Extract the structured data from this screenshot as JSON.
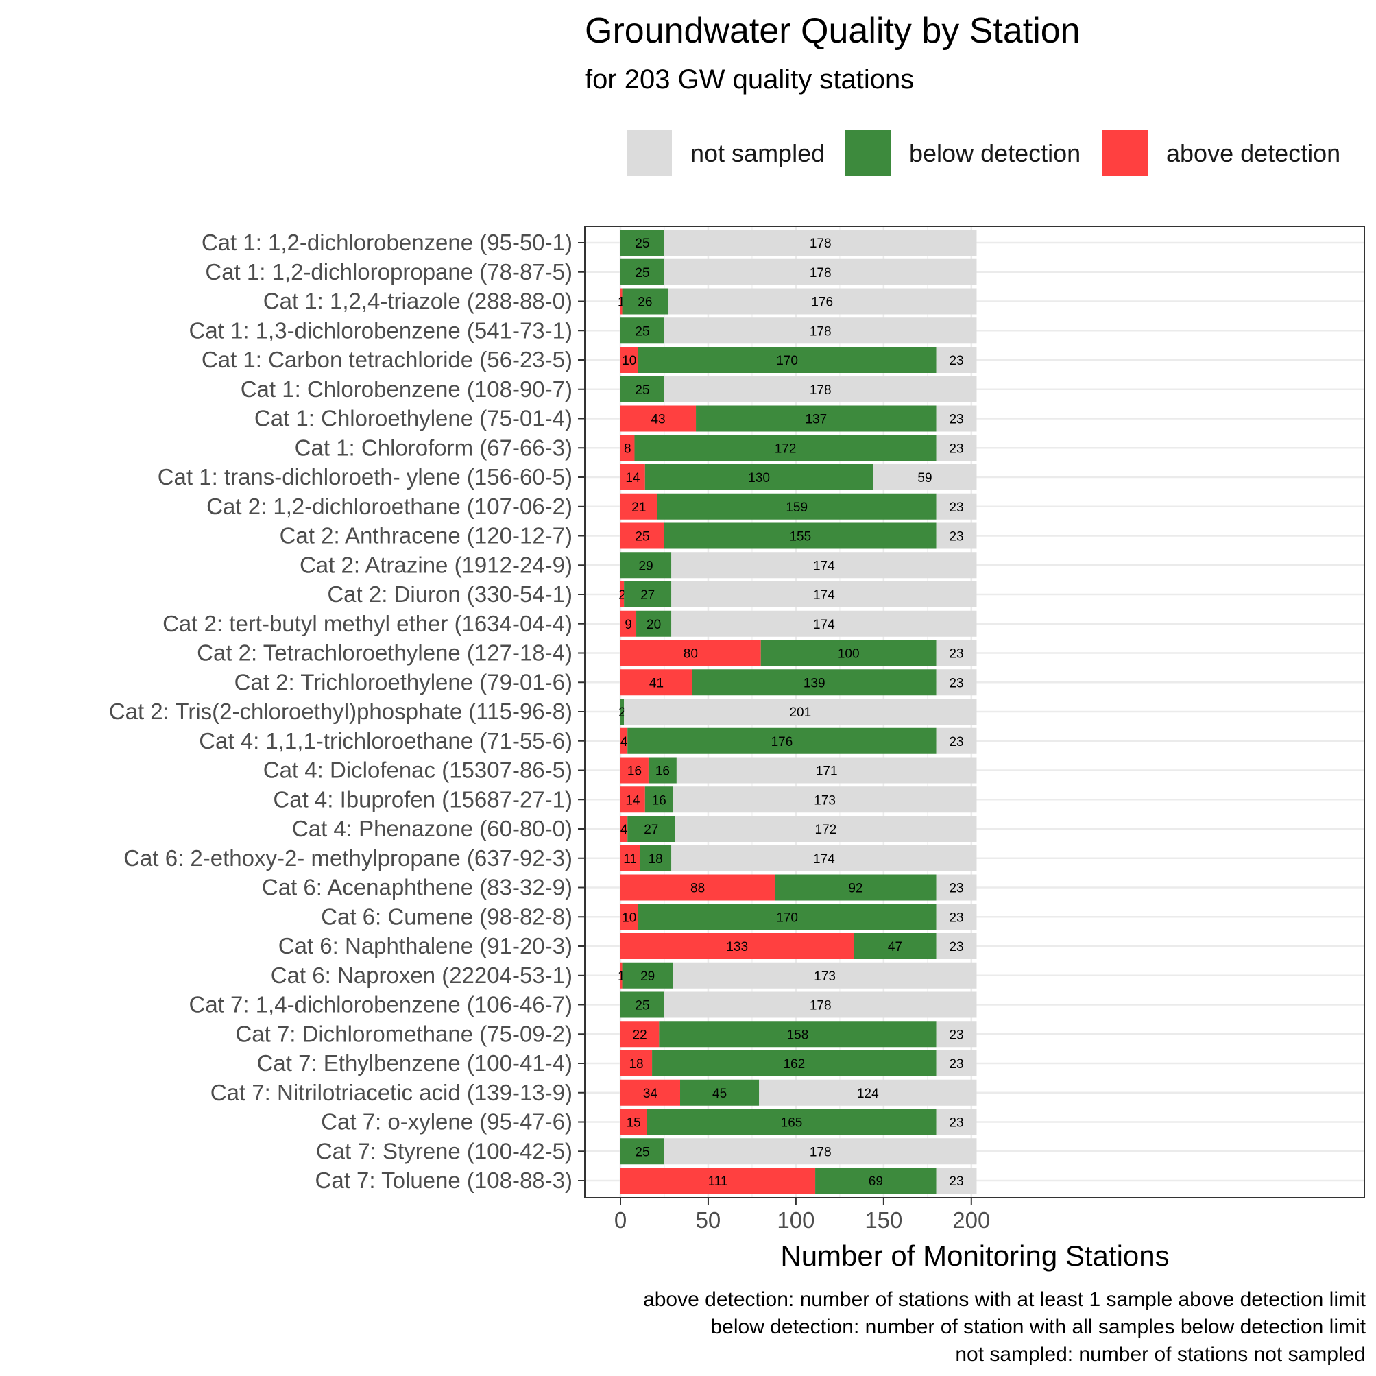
{
  "chart_data": {
    "type": "bar",
    "orientation": "horizontal",
    "stacked": true,
    "title": "Groundwater Quality by Station",
    "subtitle": "for 203 GW quality stations",
    "xlabel": "Number of Monitoring Stations",
    "ylabel": "",
    "xlim": [
      0,
      203
    ],
    "xticks": [
      0,
      50,
      100,
      150,
      200
    ],
    "grid": true,
    "legend_position": "top",
    "legend": [
      {
        "name": "not sampled",
        "color": "#dcdcdc"
      },
      {
        "name": "below detection",
        "color": "#3d8a3d"
      },
      {
        "name": "above detection",
        "color": "#ff4040"
      }
    ],
    "caption_lines": [
      "above detection: number of stations with at least 1 sample above detection limit",
      "below detection: number of station with all samples below detection limit",
      "not sampled: number of stations not sampled"
    ],
    "categories": [
      "Cat 1: 1,2-dichlorobenzene (95-50-1)",
      "Cat 1: 1,2-dichloropropane (78-87-5)",
      "Cat 1: 1,2,4-triazole (288-88-0)",
      "Cat 1: 1,3-dichlorobenzene (541-73-1)",
      "Cat 1: Carbon tetrachloride (56-23-5)",
      "Cat 1: Chlorobenzene (108-90-7)",
      "Cat 1: Chloroethylene (75-01-4)",
      "Cat 1: Chloroform (67-66-3)",
      "Cat 1: trans-dichloroeth- ylene (156-60-5)",
      "Cat 2: 1,2-dichloroethane (107-06-2)",
      "Cat 2: Anthracene (120-12-7)",
      "Cat 2: Atrazine (1912-24-9)",
      "Cat 2: Diuron (330-54-1)",
      "Cat 2: tert-butyl methyl ether (1634-04-4)",
      "Cat 2: Tetrachloroethylene (127-18-4)",
      "Cat 2: Trichloroethylene (79-01-6)",
      "Cat 2: Tris(2-chloroethyl)phosphate (115-96-8)",
      "Cat 4: 1,1,1-trichloroethane (71-55-6)",
      "Cat 4: Diclofenac (15307-86-5)",
      "Cat 4: Ibuprofen (15687-27-1)",
      "Cat 4: Phenazone (60-80-0)",
      "Cat 6: 2-ethoxy-2- methylpropane (637-92-3)",
      "Cat 6: Acenaphthene (83-32-9)",
      "Cat 6: Cumene (98-82-8)",
      "Cat 6: Naphthalene (91-20-3)",
      "Cat 6: Naproxen (22204-53-1)",
      "Cat 7: 1,4-dichlorobenzene (106-46-7)",
      "Cat 7: Dichloromethane (75-09-2)",
      "Cat 7: Ethylbenzene (100-41-4)",
      "Cat 7: Nitrilotriacetic acid (139-13-9)",
      "Cat 7: o-xylene (95-47-6)",
      "Cat 7: Styrene (100-42-5)",
      "Cat 7: Toluene (108-88-3)"
    ],
    "series": [
      {
        "name": "above detection",
        "values": [
          0,
          0,
          1,
          0,
          10,
          0,
          43,
          8,
          14,
          21,
          25,
          0,
          2,
          9,
          80,
          41,
          0,
          4,
          16,
          14,
          4,
          11,
          88,
          10,
          133,
          1,
          0,
          22,
          18,
          34,
          15,
          0,
          111
        ]
      },
      {
        "name": "below detection",
        "values": [
          25,
          25,
          26,
          25,
          170,
          25,
          137,
          172,
          130,
          159,
          155,
          29,
          27,
          20,
          100,
          139,
          2,
          176,
          16,
          16,
          27,
          18,
          92,
          170,
          47,
          29,
          25,
          158,
          162,
          45,
          165,
          25,
          69
        ]
      },
      {
        "name": "not sampled",
        "values": [
          178,
          178,
          176,
          178,
          23,
          178,
          23,
          23,
          59,
          23,
          23,
          174,
          174,
          174,
          23,
          23,
          201,
          23,
          171,
          173,
          172,
          174,
          23,
          23,
          23,
          173,
          178,
          23,
          23,
          124,
          23,
          178,
          23
        ]
      }
    ]
  }
}
